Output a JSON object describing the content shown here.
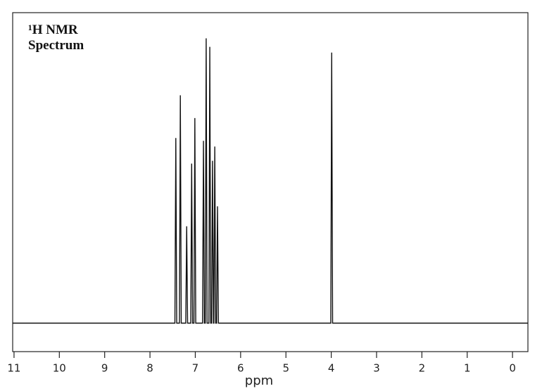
{
  "chart_data": {
    "type": "line",
    "title": "¹H NMR Spectrum",
    "x_label": "ppm",
    "xlim": [
      11.03,
      -0.34
    ],
    "ylim": [
      -0.1,
      1.09
    ],
    "xticks": [
      11,
      10,
      9,
      8,
      7,
      6,
      5,
      4,
      3,
      2,
      1,
      0
    ],
    "series": [
      {
        "color": "#111111",
        "x": [
          11.03,
          7.45,
          7.43,
          7.41,
          7.35,
          7.33,
          7.31,
          7.21,
          7.19,
          7.17,
          7.1,
          7.08,
          7.06,
          7.03,
          7.01,
          6.99,
          6.84,
          6.82,
          6.8,
          6.78,
          6.76,
          6.74,
          6.7,
          6.68,
          6.66,
          6.64,
          6.62,
          6.6,
          6.59,
          6.57,
          6.55,
          6.53,
          6.51,
          6.49,
          4.01,
          3.99,
          3.97,
          -0.34
        ],
        "values": [
          0,
          0,
          0.65,
          0,
          0,
          0.8,
          0,
          0,
          0.34,
          0,
          0,
          0.56,
          0,
          0,
          0.72,
          0,
          0,
          0.64,
          0,
          0,
          1.0,
          0,
          0,
          0.97,
          0,
          0,
          0.57,
          0,
          0,
          0.62,
          0,
          0,
          0.41,
          0,
          0,
          0.95,
          0,
          0
        ]
      }
    ]
  }
}
